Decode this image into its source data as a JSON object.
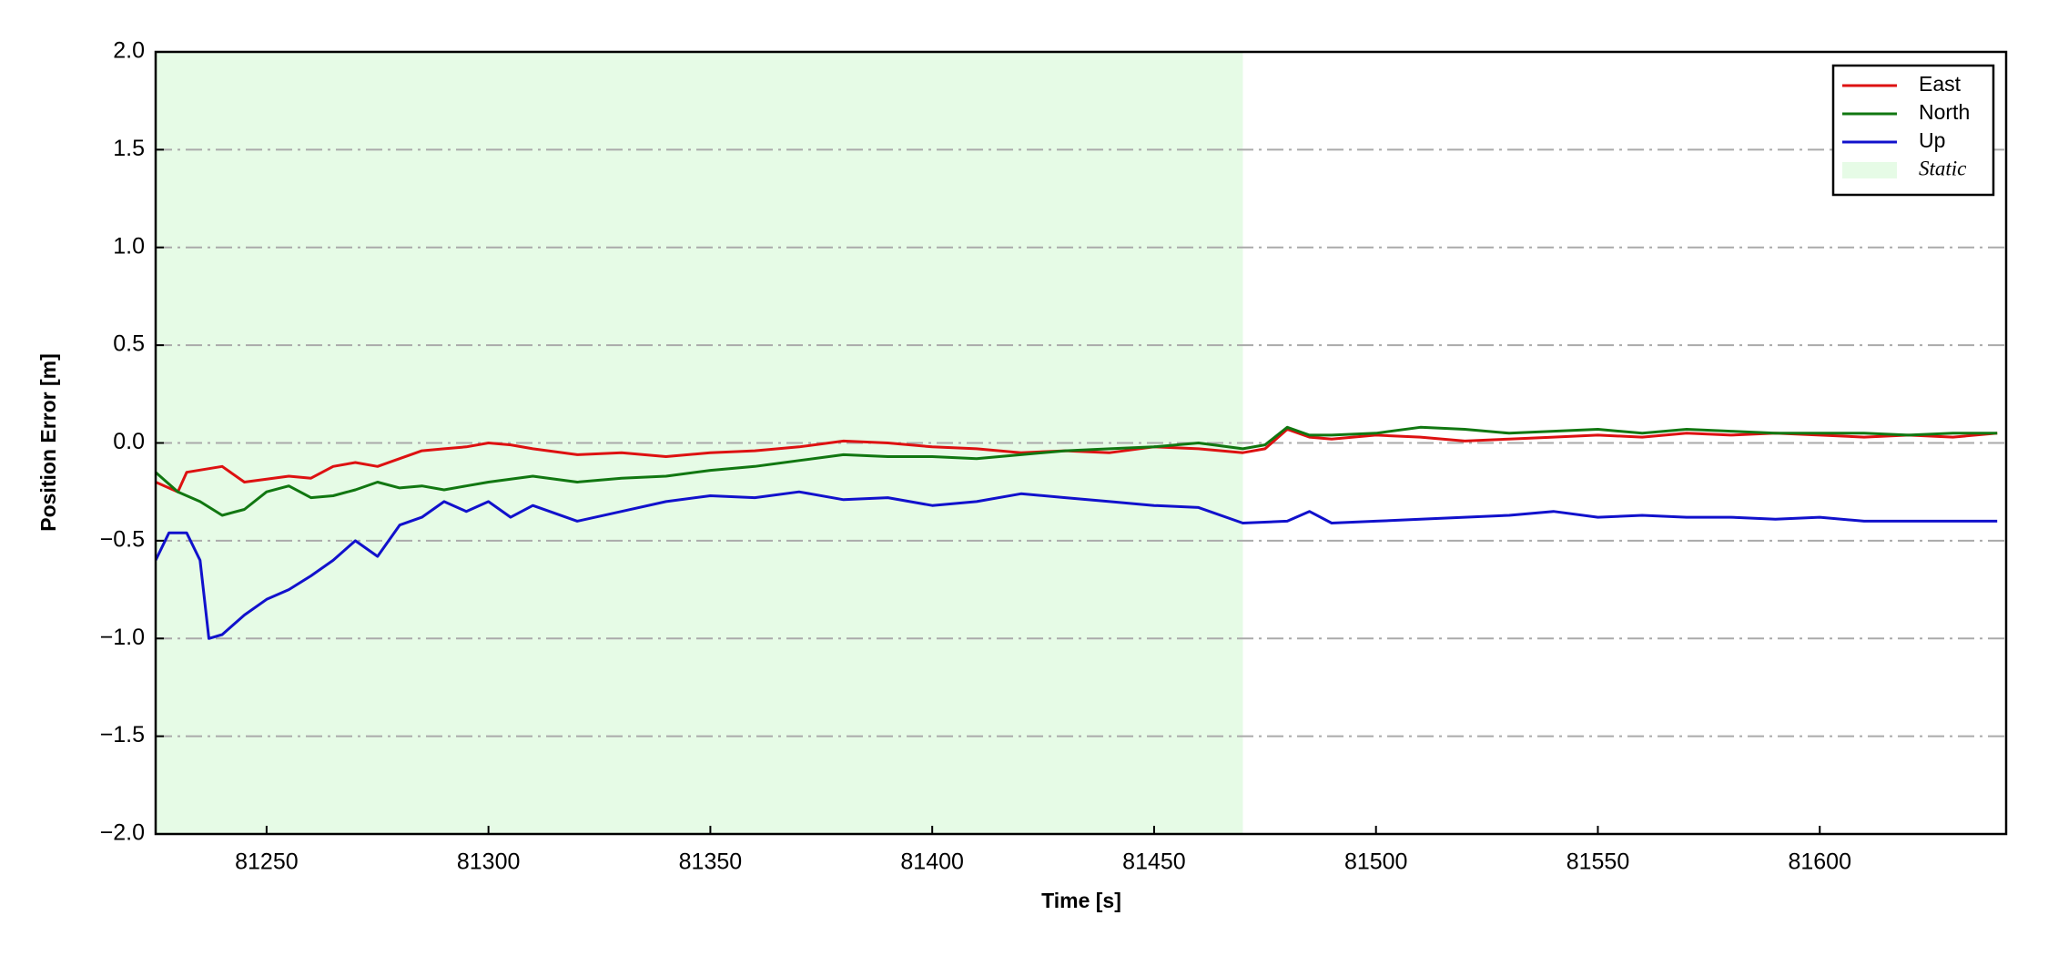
{
  "chart_data": {
    "type": "line",
    "xlabel": "Time [s]",
    "ylabel": "Position Error [m]",
    "xlim": [
      81225,
      81642
    ],
    "ylim": [
      -2,
      2
    ],
    "xticks": [
      81250,
      81300,
      81350,
      81400,
      81450,
      81500,
      81550,
      81600
    ],
    "yticks": [
      {
        "value": -2,
        "label": "−2.0"
      },
      {
        "value": -1.5,
        "label": "−1.5"
      },
      {
        "value": -1,
        "label": "−1.0"
      },
      {
        "value": -0.5,
        "label": "−0.5"
      },
      {
        "value": 0,
        "label": "0.0"
      },
      0.5,
      {
        "value": 1,
        "label": "1.0"
      },
      1.5,
      {
        "value": 2,
        "label": "2.0"
      }
    ],
    "grid": true,
    "legend": "upper right",
    "shaded_regions": [
      {
        "name": "Static",
        "color": "#e6fbe6",
        "x": [
          81225,
          81470
        ]
      }
    ],
    "series": [
      {
        "name": "East",
        "color": "#dd1111",
        "x": [
          81225,
          81230,
          81232,
          81240,
          81245,
          81255,
          81260,
          81265,
          81270,
          81275,
          81280,
          81285,
          81290,
          81295,
          81300,
          81305,
          81310,
          81320,
          81330,
          81340,
          81350,
          81360,
          81370,
          81380,
          81390,
          81400,
          81410,
          81420,
          81430,
          81440,
          81450,
          81460,
          81470,
          81475,
          81480,
          81485,
          81490,
          81500,
          81510,
          81520,
          81530,
          81540,
          81550,
          81560,
          81570,
          81580,
          81590,
          81600,
          81610,
          81620,
          81630,
          81640
        ],
        "values": [
          -0.2,
          -0.25,
          -0.15,
          -0.12,
          -0.2,
          -0.17,
          -0.18,
          -0.12,
          -0.1,
          -0.12,
          -0.08,
          -0.04,
          -0.03,
          -0.02,
          0.0,
          -0.01,
          -0.03,
          -0.06,
          -0.05,
          -0.07,
          -0.05,
          -0.04,
          -0.02,
          0.01,
          0.0,
          -0.02,
          -0.03,
          -0.05,
          -0.04,
          -0.05,
          -0.02,
          -0.03,
          -0.05,
          -0.03,
          0.07,
          0.03,
          0.02,
          0.04,
          0.03,
          0.01,
          0.02,
          0.03,
          0.04,
          0.03,
          0.05,
          0.04,
          0.05,
          0.04,
          0.03,
          0.04,
          0.03,
          0.05
        ]
      },
      {
        "name": "North",
        "color": "#117711",
        "x": [
          81225,
          81230,
          81235,
          81240,
          81245,
          81250,
          81255,
          81260,
          81265,
          81270,
          81275,
          81280,
          81285,
          81290,
          81295,
          81300,
          81310,
          81320,
          81330,
          81340,
          81350,
          81360,
          81370,
          81380,
          81390,
          81400,
          81410,
          81420,
          81430,
          81440,
          81450,
          81460,
          81470,
          81475,
          81480,
          81485,
          81490,
          81500,
          81510,
          81520,
          81530,
          81540,
          81550,
          81560,
          81570,
          81580,
          81590,
          81600,
          81610,
          81620,
          81630,
          81640
        ],
        "values": [
          -0.15,
          -0.25,
          -0.3,
          -0.37,
          -0.34,
          -0.25,
          -0.22,
          -0.28,
          -0.27,
          -0.24,
          -0.2,
          -0.23,
          -0.22,
          -0.24,
          -0.22,
          -0.2,
          -0.17,
          -0.2,
          -0.18,
          -0.17,
          -0.14,
          -0.12,
          -0.09,
          -0.06,
          -0.07,
          -0.07,
          -0.08,
          -0.06,
          -0.04,
          -0.03,
          -0.02,
          0.0,
          -0.03,
          -0.01,
          0.08,
          0.04,
          0.04,
          0.05,
          0.08,
          0.07,
          0.05,
          0.06,
          0.07,
          0.05,
          0.07,
          0.06,
          0.05,
          0.05,
          0.05,
          0.04,
          0.05,
          0.05
        ]
      },
      {
        "name": "Up",
        "color": "#1111cc",
        "x": [
          81225,
          81228,
          81232,
          81235,
          81237,
          81240,
          81245,
          81250,
          81255,
          81260,
          81265,
          81270,
          81275,
          81280,
          81285,
          81290,
          81295,
          81300,
          81305,
          81310,
          81320,
          81330,
          81340,
          81350,
          81360,
          81370,
          81380,
          81390,
          81400,
          81410,
          81420,
          81430,
          81440,
          81450,
          81460,
          81470,
          81480,
          81485,
          81490,
          81500,
          81510,
          81520,
          81530,
          81540,
          81550,
          81560,
          81570,
          81580,
          81590,
          81600,
          81610,
          81620,
          81630,
          81640
        ],
        "values": [
          -0.6,
          -0.46,
          -0.46,
          -0.6,
          -1.0,
          -0.98,
          -0.88,
          -0.8,
          -0.75,
          -0.68,
          -0.6,
          -0.5,
          -0.58,
          -0.42,
          -0.38,
          -0.3,
          -0.35,
          -0.3,
          -0.38,
          -0.32,
          -0.4,
          -0.35,
          -0.3,
          -0.27,
          -0.28,
          -0.25,
          -0.29,
          -0.28,
          -0.32,
          -0.3,
          -0.26,
          -0.28,
          -0.3,
          -0.32,
          -0.33,
          -0.41,
          -0.4,
          -0.35,
          -0.41,
          -0.4,
          -0.39,
          -0.38,
          -0.37,
          -0.35,
          -0.38,
          -0.37,
          -0.38,
          -0.38,
          -0.39,
          -0.38,
          -0.4,
          -0.4,
          -0.4,
          -0.4
        ]
      }
    ]
  }
}
